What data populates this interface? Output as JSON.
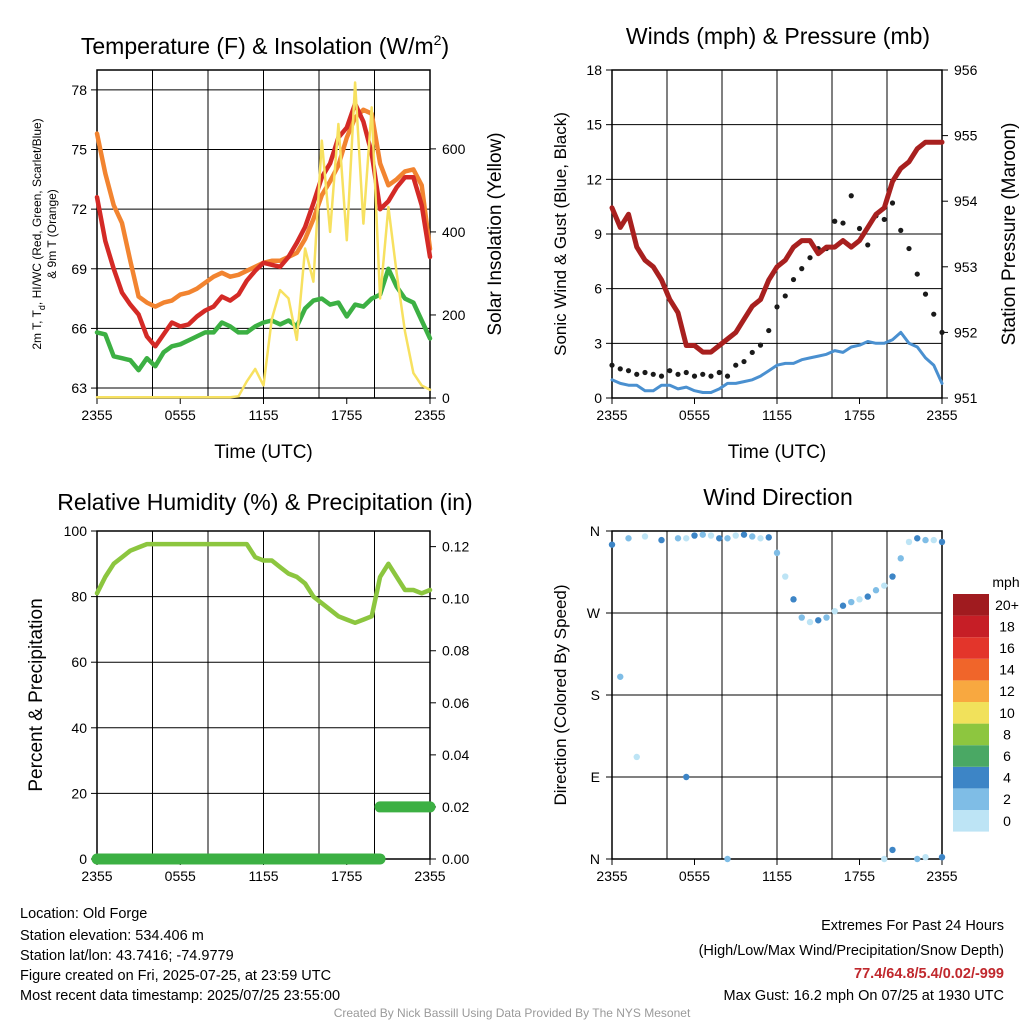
{
  "chart_data": [
    {
      "id": "temp",
      "type": "line",
      "title": "Temperature (F) & Insolation (W/m²)",
      "title_main": "Temperature (F) & Insolation (W/m",
      "title_sup": "2",
      "title_end": ")",
      "xlabel": "Time (UTC)",
      "ylabel_lines": [
        "2m T, T",
        "d",
        ", HI/WC (Red, Green, Scarlet/Blue)",
        "& 9m T (Orange)"
      ],
      "ylabel_right": "Solar Insolation (Yellow)",
      "x_ticks": [
        "2355",
        "0555",
        "1155",
        "1755",
        "2355"
      ],
      "y_ticks": [
        "63",
        "66",
        "69",
        "72",
        "75",
        "78"
      ],
      "ylim": [
        62.5,
        79
      ],
      "y_right_ticks": [
        "0",
        "200",
        "400",
        "600"
      ],
      "y_right_lim": [
        0,
        790
      ],
      "grid": true,
      "series": [
        {
          "color": "#f28430",
          "values": [
            75.8,
            73.8,
            72.2,
            71.3,
            69.4,
            67.6,
            67.3,
            67.1,
            67.3,
            67.4,
            67.7,
            67.8,
            68.0,
            68.3,
            68.6,
            68.8,
            68.6,
            68.7,
            68.9,
            69.1,
            69.3,
            69.4,
            69.4,
            69.6,
            69.8,
            70.5,
            71.5,
            72.7,
            73.4,
            74.2,
            75.6,
            76.6,
            77.0,
            76.8,
            74.3,
            73.2,
            73.5,
            73.9,
            74.0,
            73.2,
            70.0
          ]
        },
        {
          "color": "#d42a26",
          "values": [
            72.6,
            70.4,
            69.0,
            67.8,
            67.2,
            66.7,
            65.6,
            65.1,
            65.7,
            66.3,
            66.1,
            66.2,
            66.6,
            66.9,
            67.1,
            67.6,
            67.4,
            67.7,
            68.4,
            68.9,
            69.3,
            69.2,
            69.1,
            69.6,
            70.3,
            71.1,
            72.3,
            73.6,
            74.3,
            75.6,
            76.1,
            77.3,
            76.4,
            74.8,
            72.0,
            72.4,
            73.1,
            73.6,
            73.6,
            72.2,
            69.6
          ]
        },
        {
          "color": "#3cb043",
          "values": [
            65.8,
            65.7,
            64.6,
            64.5,
            64.4,
            63.9,
            64.5,
            64.1,
            64.8,
            65.1,
            65.2,
            65.4,
            65.6,
            65.8,
            65.8,
            66.3,
            66.1,
            65.8,
            65.8,
            66.1,
            66.3,
            66.4,
            66.2,
            66.4,
            66.1,
            67.0,
            67.4,
            67.5,
            67.2,
            67.3,
            66.6,
            67.2,
            67.1,
            67.5,
            67.7,
            69.0,
            68.1,
            67.5,
            67.3,
            66.4,
            65.5
          ]
        },
        {
          "color": "#f7e160",
          "right_axis": true,
          "values": [
            2,
            2,
            2,
            2,
            2,
            2,
            2,
            2,
            2,
            2,
            2,
            2,
            2,
            2,
            2,
            2,
            2,
            4,
            40,
            70,
            30,
            190,
            260,
            240,
            140,
            360,
            280,
            620,
            400,
            660,
            380,
            760,
            420,
            700,
            240,
            460,
            300,
            160,
            60,
            30,
            20
          ]
        }
      ]
    },
    {
      "id": "winds",
      "type": "line",
      "title": "Winds (mph) & Pressure (mb)",
      "xlabel": "Time (UTC)",
      "ylabel": "Sonic Wind & Gust (Blue, Black)",
      "ylabel_right": "Station Pressure (Maroon)",
      "x_ticks": [
        "2355",
        "0555",
        "1155",
        "1755",
        "2355"
      ],
      "y_ticks": [
        "0",
        "3",
        "6",
        "9",
        "12",
        "15",
        "18"
      ],
      "ylim": [
        0,
        18
      ],
      "y_right_ticks": [
        "951",
        "952",
        "953",
        "954",
        "955",
        "956"
      ],
      "y_right_lim": [
        951,
        956
      ],
      "grid": true,
      "series": [
        {
          "color": "#4a90d0",
          "values": [
            1.0,
            0.8,
            0.7,
            0.7,
            0.4,
            0.4,
            0.7,
            0.7,
            0.5,
            0.6,
            0.4,
            0.3,
            0.3,
            0.5,
            0.8,
            0.8,
            0.9,
            1.0,
            1.2,
            1.5,
            1.8,
            1.9,
            1.9,
            2.1,
            2.2,
            2.3,
            2.4,
            2.6,
            2.5,
            2.8,
            2.9,
            3.1,
            3.0,
            3.0,
            3.2,
            3.6,
            3.0,
            2.8,
            2.2,
            1.8,
            0.8
          ]
        },
        {
          "color": "#1a1a1a",
          "scatter": true,
          "values": [
            1.8,
            1.6,
            1.5,
            1.3,
            1.4,
            1.3,
            1.2,
            1.5,
            1.3,
            1.4,
            1.2,
            1.3,
            1.2,
            1.4,
            1.2,
            1.8,
            2.0,
            2.5,
            2.9,
            3.7,
            5.0,
            5.6,
            6.5,
            7.1,
            7.7,
            8.2,
            8.2,
            9.7,
            9.6,
            11.1,
            9.3,
            8.4,
            10.0,
            9.8,
            10.7,
            9.2,
            8.2,
            6.8,
            5.7,
            4.6,
            3.6
          ]
        },
        {
          "color": "#a8201f",
          "right_axis": true,
          "values": [
            953.9,
            953.6,
            953.8,
            953.3,
            953.1,
            953.0,
            952.8,
            952.5,
            952.3,
            951.8,
            951.8,
            951.7,
            951.7,
            951.8,
            951.9,
            952.0,
            952.2,
            952.4,
            952.5,
            952.8,
            953.0,
            953.1,
            953.3,
            953.4,
            953.4,
            953.2,
            953.3,
            953.3,
            953.4,
            953.3,
            953.4,
            953.6,
            953.8,
            953.9,
            954.3,
            954.5,
            954.6,
            954.8,
            954.9,
            954.9,
            954.9
          ]
        }
      ]
    },
    {
      "id": "rh",
      "type": "line",
      "title": "Relative Humidity (%) & Precipitation (in)",
      "xlabel": "",
      "ylabel": "Percent & Precipitation",
      "x_ticks": [
        "2355",
        "0555",
        "1155",
        "1755",
        "2355"
      ],
      "y_ticks": [
        "0",
        "20",
        "40",
        "60",
        "80",
        "100"
      ],
      "ylim": [
        0,
        100
      ],
      "y_right_ticks": [
        "0.00",
        "0.02",
        "0.04",
        "0.06",
        "0.08",
        "0.10",
        "0.12"
      ],
      "y_right_lim": [
        0,
        0.126
      ],
      "grid": true,
      "series": [
        {
          "color": "#8cc63f",
          "values": [
            81,
            86,
            90,
            92,
            94,
            95,
            96,
            96,
            96,
            96,
            96,
            96,
            96,
            96,
            96,
            96,
            96,
            96,
            96,
            92,
            91,
            91,
            89,
            87,
            86,
            84,
            80,
            78,
            76,
            74,
            73,
            72,
            73,
            74,
            86,
            90,
            86,
            82,
            82,
            81,
            82
          ]
        },
        {
          "color": "#3cb043",
          "right_axis": true,
          "values": [
            0,
            0,
            0,
            0,
            0,
            0,
            0,
            0,
            0,
            0,
            0,
            0,
            0,
            0,
            0,
            0,
            0,
            0,
            0,
            0,
            0,
            0,
            0,
            0,
            0,
            0,
            0,
            0,
            0,
            0,
            0,
            0,
            0,
            0,
            0.02,
            0.02,
            0.02,
            0.02,
            0.02,
            0.02,
            0.02
          ]
        }
      ]
    },
    {
      "id": "wdir",
      "type": "scatter",
      "title": "Wind Direction",
      "xlabel": "",
      "ylabel": "Direction (Colored By Speed)",
      "x_ticks": [
        "2355",
        "0555",
        "1155",
        "1755",
        "2355"
      ],
      "y_ticks": [
        "N",
        "E",
        "S",
        "W",
        "N"
      ],
      "ylim": [
        0,
        360
      ],
      "grid": true,
      "legend_title": "mph",
      "legend_labels": [
        "0",
        "2",
        "4",
        "6",
        "8",
        "10",
        "12",
        "14",
        "16",
        "18",
        "20+"
      ],
      "legend_colors": [
        "#bde4f5",
        "#7fbde6",
        "#3d85c6",
        "#4aa864",
        "#8dc63f",
        "#f1e15b",
        "#f8a840",
        "#f0652a",
        "#e3352b",
        "#c61e26",
        "#a01b1f"
      ],
      "points": [
        [
          0,
          345
        ],
        [
          2,
          352
        ],
        [
          4,
          354
        ],
        [
          6,
          350
        ],
        [
          8,
          352
        ],
        [
          9,
          352
        ],
        [
          10,
          355
        ],
        [
          11,
          356
        ],
        [
          12,
          355
        ],
        [
          13,
          352
        ],
        [
          14,
          352
        ],
        [
          15,
          355
        ],
        [
          16,
          356
        ],
        [
          17,
          354
        ],
        [
          18,
          352
        ],
        [
          19,
          353
        ],
        [
          20,
          336
        ],
        [
          21,
          310
        ],
        [
          22,
          285
        ],
        [
          23,
          265
        ],
        [
          24,
          260
        ],
        [
          25,
          262
        ],
        [
          26,
          265
        ],
        [
          27,
          272
        ],
        [
          28,
          278
        ],
        [
          29,
          282
        ],
        [
          30,
          285
        ],
        [
          31,
          288
        ],
        [
          32,
          295
        ],
        [
          33,
          300
        ],
        [
          34,
          310
        ],
        [
          35,
          330
        ],
        [
          36,
          348
        ],
        [
          37,
          352
        ],
        [
          38,
          350
        ],
        [
          39,
          350
        ],
        [
          40,
          348
        ],
        [
          1,
          200
        ],
        [
          3,
          112
        ],
        [
          9,
          90
        ],
        [
          14,
          0
        ],
        [
          33,
          0
        ],
        [
          34,
          10
        ],
        [
          37,
          0
        ],
        [
          38,
          2
        ],
        [
          40,
          2
        ]
      ]
    }
  ],
  "info": {
    "location": "Location: Old Forge",
    "elevation": "Station elevation: 534.406 m",
    "latlon": "Station lat/lon: 43.7416; -74.9779",
    "created": "Figure created on Fri, 2025-07-25, at 23:59 UTC",
    "recent": "Most recent data timestamp: 2025/07/25 23:55:00"
  },
  "extremes": {
    "title": "Extremes For Past 24 Hours",
    "subtitle": "(High/Low/Max Wind/Precipitation/Snow Depth)",
    "values": "77.4/64.8/5.4/0.02/-999",
    "values_color": "#c0282d",
    "gust": "Max Gust: 16.2 mph On 07/25 at 1930 UTC"
  },
  "credit": "Created By Nick Bassill Using Data Provided By The NYS Mesonet"
}
